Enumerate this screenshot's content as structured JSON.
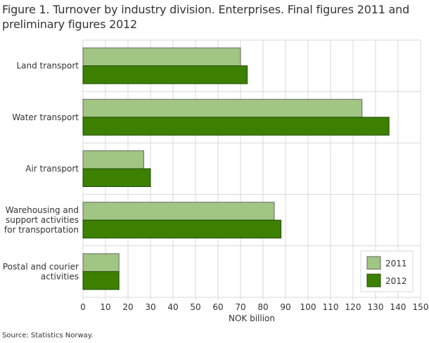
{
  "title": "Figure 1. Turnover by industry division. Enterprises. Final figures 2011 and preliminary figures 2012",
  "source": "Source: Statistics Norway.",
  "chart_data": {
    "type": "bar",
    "orientation": "horizontal",
    "title": "Figure 1. Turnover by industry division. Enterprises. Final figures 2011 and preliminary figures 2012",
    "xlabel": "NOK billion",
    "ylabel": "",
    "xlim": [
      0,
      150
    ],
    "xticks": [
      0,
      10,
      20,
      30,
      40,
      50,
      60,
      70,
      80,
      90,
      100,
      110,
      120,
      130,
      140,
      150
    ],
    "grid": true,
    "legend_position": "bottom-right",
    "categories": [
      [
        "Land transport"
      ],
      [
        "Water transport"
      ],
      [
        "Air transport"
      ],
      [
        "Warehousing and",
        "support activities",
        "for transportation"
      ],
      [
        "Postal and courier",
        "activities"
      ]
    ],
    "series": [
      {
        "name": "2011",
        "color": "#a1c583",
        "values": [
          70,
          124,
          27,
          85,
          16
        ]
      },
      {
        "name": "2012",
        "color": "#3d8000",
        "values": [
          73,
          136,
          30,
          88,
          16
        ]
      }
    ]
  }
}
